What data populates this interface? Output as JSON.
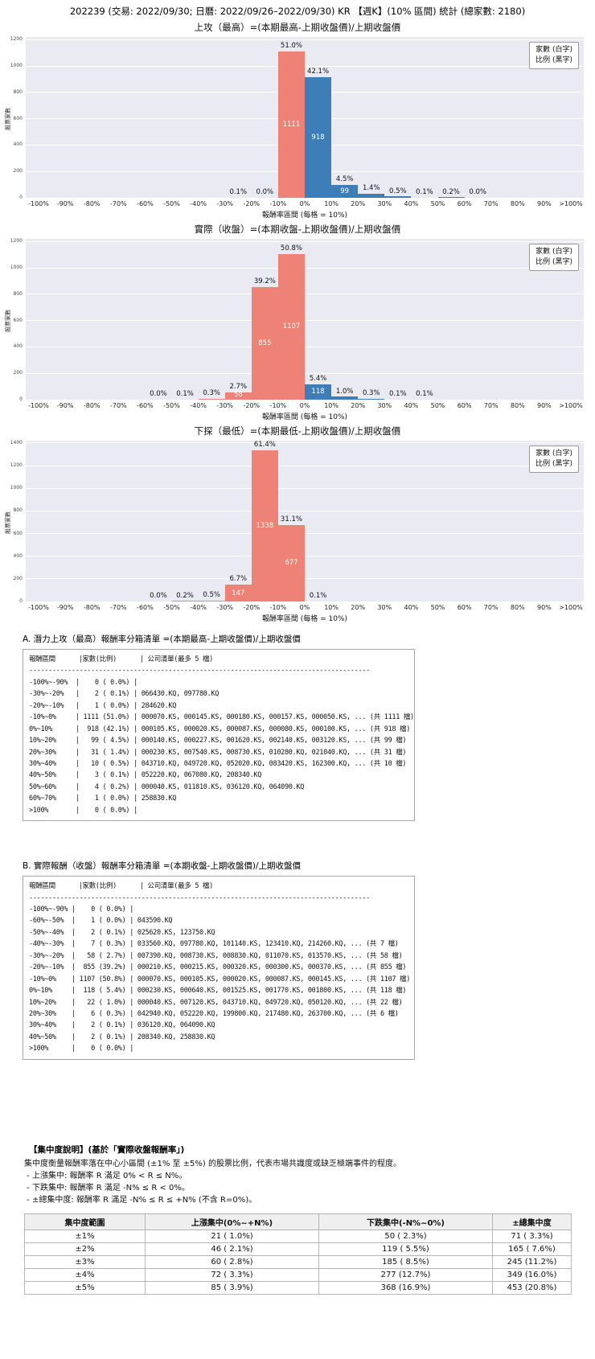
{
  "page_title": "202239 (交易: 2022/09/30; 日曆: 2022/09/26–2022/09/30) KR 【週K】(10% 區間) 統計 (總家數: 2180)",
  "legend": {
    "line1": "家數 (白字)",
    "line2": "比例 (黑字)"
  },
  "colors": {
    "negative": "#ee8276",
    "positive": "#3d7db8",
    "plot_bg": "#eaeaf2",
    "grid": "#ffffff"
  },
  "chart_data": [
    {
      "type": "bar",
      "title": "上攻（最高）=(本期最高-上期收盤價)/上期收盤價",
      "xlabel": "報酬率區間 (每格 = 10%)",
      "ylabel": "股票家數",
      "total": 2180,
      "ylim": [
        0,
        1220
      ],
      "yticks": [
        0,
        200,
        400,
        600,
        800,
        1000,
        1200
      ],
      "xticks": [
        "-100%",
        "-90%",
        "-80%",
        "-70%",
        "-60%",
        "-50%",
        "-40%",
        "-30%",
        "-20%",
        "-10%",
        "0%",
        "10%",
        "20%",
        "30%",
        "40%",
        "50%",
        "60%",
        "70%",
        "80%",
        "90%",
        ">100%"
      ],
      "bins": [
        {
          "i": 7,
          "range": "-30%~-20%",
          "count": 2,
          "pct": 0.1,
          "pct_label": "0.1%"
        },
        {
          "i": 8,
          "range": "-20%~-10%",
          "count": 1,
          "pct": 0.0,
          "pct_label": "0.0%"
        },
        {
          "i": 9,
          "range": "-10%~0%",
          "count": 1111,
          "pct": 51.0,
          "pct_label": "51.0%",
          "count_label": "1111"
        },
        {
          "i": 10,
          "range": "0%~10%",
          "count": 918,
          "pct": 42.1,
          "pct_label": "42.1%",
          "count_label": "918"
        },
        {
          "i": 11,
          "range": "10%~20%",
          "count": 99,
          "pct": 4.5,
          "pct_label": "4.5%",
          "count_label": "99"
        },
        {
          "i": 12,
          "range": "20%~30%",
          "count": 31,
          "pct": 1.4,
          "pct_label": "1.4%"
        },
        {
          "i": 13,
          "range": "30%~40%",
          "count": 10,
          "pct": 0.5,
          "pct_label": "0.5%"
        },
        {
          "i": 14,
          "range": "40%~50%",
          "count": 3,
          "pct": 0.1,
          "pct_label": "0.1%"
        },
        {
          "i": 15,
          "range": "50%~60%",
          "count": 4,
          "pct": 0.2,
          "pct_label": "0.2%"
        },
        {
          "i": 16,
          "range": "60%~70%",
          "count": 1,
          "pct": 0.0,
          "pct_label": "0.0%"
        }
      ]
    },
    {
      "type": "bar",
      "title": "實際（收盤）=(本期收盤-上期收盤價)/上期收盤價",
      "xlabel": "報酬率區間 (每格 = 10%)",
      "ylabel": "股票家數",
      "total": 2180,
      "ylim": [
        0,
        1220
      ],
      "yticks": [
        0,
        200,
        400,
        600,
        800,
        1000,
        1200
      ],
      "xticks": [
        "-100%",
        "-90%",
        "-80%",
        "-70%",
        "-60%",
        "-50%",
        "-40%",
        "-30%",
        "-20%",
        "-10%",
        "0%",
        "10%",
        "20%",
        "30%",
        "40%",
        "50%",
        "60%",
        "70%",
        "80%",
        "90%",
        ">100%"
      ],
      "bins": [
        {
          "i": 4,
          "range": "-60%~-50%",
          "count": 1,
          "pct": 0.0,
          "pct_label": "0.0%"
        },
        {
          "i": 5,
          "range": "-50%~-40%",
          "count": 2,
          "pct": 0.1,
          "pct_label": "0.1%"
        },
        {
          "i": 6,
          "range": "-40%~-30%",
          "count": 7,
          "pct": 0.3,
          "pct_label": "0.3%"
        },
        {
          "i": 7,
          "range": "-30%~-20%",
          "count": 58,
          "pct": 2.7,
          "pct_label": "2.7%",
          "count_label": "58"
        },
        {
          "i": 8,
          "range": "-20%~-10%",
          "count": 855,
          "pct": 39.2,
          "pct_label": "39.2%",
          "count_label": "855"
        },
        {
          "i": 9,
          "range": "-10%~0%",
          "count": 1107,
          "pct": 50.8,
          "pct_label": "50.8%",
          "count_label": "1107"
        },
        {
          "i": 10,
          "range": "0%~10%",
          "count": 118,
          "pct": 5.4,
          "pct_label": "5.4%",
          "count_label": "118"
        },
        {
          "i": 11,
          "range": "10%~20%",
          "count": 22,
          "pct": 1.0,
          "pct_label": "1.0%"
        },
        {
          "i": 12,
          "range": "20%~30%",
          "count": 6,
          "pct": 0.3,
          "pct_label": "0.3%"
        },
        {
          "i": 13,
          "range": "30%~40%",
          "count": 2,
          "pct": 0.1,
          "pct_label": "0.1%"
        },
        {
          "i": 14,
          "range": "40%~50%",
          "count": 2,
          "pct": 0.1,
          "pct_label": "0.1%"
        }
      ]
    },
    {
      "type": "bar",
      "title": "下探（最低）=(本期最低-上期收盤價)/上期收盤價",
      "xlabel": "報酬率區間 (每格 = 10%)",
      "ylabel": "股票家數",
      "total": 2180,
      "ylim": [
        0,
        1420
      ],
      "yticks": [
        0,
        200,
        400,
        600,
        800,
        1000,
        1200,
        1400
      ],
      "xticks": [
        "-100%",
        "-90%",
        "-80%",
        "-70%",
        "-60%",
        "-50%",
        "-40%",
        "-30%",
        "-20%",
        "-10%",
        "0%",
        "10%",
        "20%",
        "30%",
        "40%",
        "50%",
        "60%",
        "70%",
        "80%",
        "90%",
        ">100%"
      ],
      "bins": [
        {
          "i": 4,
          "range": "-60%~-50%",
          "count": 1,
          "pct": 0.0,
          "pct_label": "0.0%"
        },
        {
          "i": 5,
          "range": "-50%~-40%",
          "count": 4,
          "pct": 0.2,
          "pct_label": "0.2%"
        },
        {
          "i": 6,
          "range": "-40%~-30%",
          "count": 10,
          "pct": 0.5,
          "pct_label": "0.5%"
        },
        {
          "i": 7,
          "range": "-30%~-20%",
          "count": 147,
          "pct": 6.7,
          "pct_label": "6.7%",
          "count_label": "147"
        },
        {
          "i": 8,
          "range": "-20%~-10%",
          "count": 1338,
          "pct": 61.4,
          "pct_label": "61.4%",
          "count_label": "1338"
        },
        {
          "i": 9,
          "range": "-10%~0%",
          "count": 677,
          "pct": 31.1,
          "pct_label": "31.1%",
          "count_label": "677"
        },
        {
          "i": 10,
          "range": "0%~10%",
          "count": 2,
          "pct": 0.1,
          "pct_label": "0.1%"
        }
      ]
    }
  ],
  "list_a": {
    "heading": "A. 潛力上攻（最高）報酬率分箱清單 =(本期最高-上期收盤價)/上期收盤價",
    "lines": [
      "報酬區間      |家數(比例)      | 公司清單(最多 5 檔)",
      "----------------------------------------------------------------------------------------",
      "-100%~-90%  |    0 ( 0.0%) |",
      "-30%~-20%   |    2 ( 0.1%) | 066430.KQ, 097780.KQ",
      "-20%~-10%   |    1 ( 0.0%) | 284620.KQ",
      "-10%~0%     | 1111 (51.0%) | 000070.KS, 000145.KS, 000180.KS, 000157.KS, 000050.KS, ... (共 1111 檔)",
      "0%~10%      |  918 (42.1%) | 000105.KS, 000020.KS, 000087.KS, 000080.KS, 000100.KS, ... (共 918 檔)",
      "10%~20%     |   99 ( 4.5%) | 000140.KS, 000227.KS, 001620.KS, 002140.KS, 003120.KS, ... (共 99 檔)",
      "20%~30%     |   31 ( 1.4%) | 000230.KS, 007540.KS, 008730.KS, 010280.KQ, 021040.KQ, ... (共 31 檔)",
      "30%~40%     |   10 ( 0.5%) | 043710.KQ, 049720.KQ, 052020.KQ, 083420.KS, 162300.KQ, ... (共 10 檔)",
      "40%~50%     |    3 ( 0.1%) | 052220.KQ, 067080.KQ, 208340.KQ",
      "50%~60%     |    4 ( 0.2%) | 000040.KS, 011810.KS, 036120.KQ, 064090.KQ",
      "60%~70%     |    1 ( 0.0%) | 258830.KQ",
      ">100%       |    0 ( 0.0%) |"
    ]
  },
  "list_b": {
    "heading": "B. 實際報酬（收盤）報酬率分箱清單 =(本期收盤-上期收盤價)/上期收盤價",
    "lines": [
      "報酬區間      |家數(比例)      | 公司清單(最多 5 檔)",
      "----------------------------------------------------------------------------------------",
      "-100%~-90% |    0 ( 0.0%) |",
      "-60%~-50%  |    1 ( 0.0%) | 043590.KQ",
      "-50%~-40%  |    2 ( 0.1%) | 025620.KS, 123750.KQ",
      "-40%~-30%  |    7 ( 0.3%) | 033560.KQ, 097780.KQ, 101140.KS, 123410.KQ, 214260.KQ, ... (共 7 檔)",
      "-30%~-20%  |   58 ( 2.7%) | 007390.KQ, 008730.KS, 008830.KQ, 011070.KS, 013570.KS, ... (共 58 檔)",
      "-20%~-10%  |  855 (39.2%) | 000210.KS, 000215.KS, 000320.KS, 000300.KS, 000370.KS, ... (共 855 檔)",
      "-10%~0%    | 1107 (50.8%) | 000070.KS, 000105.KS, 000020.KS, 000087.KS, 000145.KS, ... (共 1107 檔)",
      "0%~10%     |  118 ( 5.4%) | 000230.KS, 000640.KS, 001525.KS, 001770.KS, 001800.KS, ... (共 118 檔)",
      "10%~20%    |   22 ( 1.0%) | 000040.KS, 007120.KS, 043710.KQ, 049720.KQ, 050120.KQ, ... (共 22 檔)",
      "20%~30%    |    6 ( 0.3%) | 042940.KQ, 052220.KQ, 199800.KQ, 217480.KQ, 263700.KQ, ... (共 6 檔)",
      "30%~40%    |    2 ( 0.1%) | 036120.KQ, 064090.KQ",
      "40%~50%    |    2 ( 0.1%) | 208340.KQ, 258830.KQ",
      ">100%      |    0 ( 0.0%) |"
    ]
  },
  "concentration": {
    "heading": "【集中度說明】(基於「實際收盤報酬率」)",
    "desc_lines": [
      "集中度衡量報酬率落在中心小區間 (±1% 至 ±5%) 的股票比例，代表市場共識度或缺乏極端事件的程度。",
      " - 上漲集中: 報酬率 R 滿足 0% < R ≤ N%。",
      " - 下跌集中: 報酬率 R 滿足 -N% ≤ R < 0%。",
      " - ±總集中度: 報酬率 R 滿足 -N% ≤ R ≤ +N% (不含 R=0%)。"
    ],
    "table": {
      "headers": [
        "集中度範圍",
        "上漲集中(0%~+N%)",
        "下跌集中(-N%~0%)",
        "±總集中度"
      ],
      "rows": [
        [
          "±1%",
          "21 ( 1.0%)",
          "50 ( 2.3%)",
          "71 ( 3.3%)"
        ],
        [
          "±2%",
          "46 ( 2.1%)",
          "119 ( 5.5%)",
          "165 ( 7.6%)"
        ],
        [
          "±3%",
          "60 ( 2.8%)",
          "185 ( 8.5%)",
          "245 (11.2%)"
        ],
        [
          "±4%",
          "72 ( 3.3%)",
          "277 (12.7%)",
          "349 (16.0%)"
        ],
        [
          "±5%",
          "85 ( 3.9%)",
          "368 (16.9%)",
          "453 (20.8%)"
        ]
      ]
    }
  }
}
